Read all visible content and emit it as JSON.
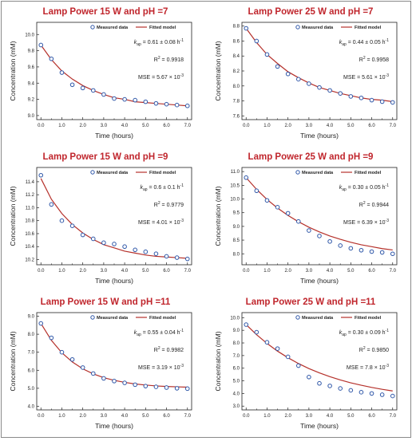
{
  "chart_data": [
    {
      "type": "scatter",
      "title": "Lamp Power 15 W and pH =7",
      "xlabel": "Time (hours)",
      "ylabel": "Concentration (mM)",
      "xlim": [
        -0.2,
        7.2
      ],
      "ylim": [
        8.95,
        10.15
      ],
      "xticks": [
        "0.0",
        "1.0",
        "2.0",
        "3.0",
        "4.0",
        "5.0",
        "6.0",
        "7.0"
      ],
      "yticks": [
        "9.0",
        "9.2",
        "9.4",
        "9.6",
        "9.8",
        "10.0"
      ],
      "ytick_values": [
        9.0,
        9.2,
        9.4,
        9.6,
        9.8,
        10.0
      ],
      "legend": [
        "Measured data",
        "Fitted model"
      ],
      "legend_position": "top-right",
      "annotations": [
        "k",
        "ap",
        " = 0.61 ± 0.08 h",
        "-1",
        "R",
        "2",
        " = 0.9918",
        "MSE = 5.67 × 10",
        "-3"
      ],
      "x": [
        0,
        0.5,
        1.0,
        1.5,
        2.0,
        2.5,
        3.0,
        3.5,
        4.0,
        4.5,
        5.0,
        5.5,
        6.0,
        6.5,
        7.0
      ],
      "series": [
        {
          "name": "Measured data",
          "values": [
            9.87,
            9.7,
            9.53,
            9.38,
            9.34,
            9.31,
            9.26,
            9.21,
            9.2,
            9.19,
            9.17,
            9.15,
            9.14,
            9.13,
            9.12
          ]
        },
        {
          "name": "Fitted model",
          "values": [
            9.87,
            9.69,
            9.55,
            9.45,
            9.37,
            9.31,
            9.26,
            9.22,
            9.2,
            9.17,
            9.16,
            9.15,
            9.14,
            9.13,
            9.12
          ]
        }
      ]
    },
    {
      "type": "scatter",
      "title": "Lamp Power 25 W and pH =7",
      "xlabel": "Time (hours)",
      "ylabel": "Concentration (mM)",
      "xlim": [
        -0.2,
        7.2
      ],
      "ylim": [
        7.55,
        8.85
      ],
      "xticks": [
        "0.0",
        "1.0",
        "2.0",
        "3.0",
        "4.0",
        "5.0",
        "6.0",
        "7.0"
      ],
      "yticks": [
        "7.6",
        "7.8",
        "8.0",
        "8.2",
        "8.4",
        "8.6",
        "8.8"
      ],
      "ytick_values": [
        7.6,
        7.8,
        8.0,
        8.2,
        8.4,
        8.6,
        8.8
      ],
      "legend": [
        "Measured data",
        "Fitted model"
      ],
      "legend_position": "top-right",
      "annotations": [
        "k",
        "ap",
        " = 0.44 ± 0.05 h",
        "-1",
        "R",
        "2",
        " = 0.9958",
        "MSE = 5.61 × 10",
        "-3"
      ],
      "x": [
        0,
        0.5,
        1.0,
        1.5,
        2.0,
        2.5,
        3.0,
        3.5,
        4.0,
        4.5,
        5.0,
        5.5,
        6.0,
        6.5,
        7.0
      ],
      "series": [
        {
          "name": "Measured data",
          "values": [
            8.77,
            8.6,
            8.42,
            8.26,
            8.16,
            8.09,
            8.03,
            7.98,
            7.94,
            7.9,
            7.86,
            7.84,
            7.81,
            7.79,
            7.78
          ]
        },
        {
          "name": "Fitted model",
          "values": [
            8.77,
            8.58,
            8.42,
            8.3,
            8.19,
            8.11,
            8.04,
            7.98,
            7.94,
            7.9,
            7.87,
            7.84,
            7.82,
            7.81,
            7.79
          ]
        }
      ]
    },
    {
      "type": "scatter",
      "title": "Lamp Power 15 W and pH =9",
      "xlabel": "Time (hours)",
      "ylabel": "Concentration (mM)",
      "xlim": [
        -0.2,
        7.2
      ],
      "ylim": [
        10.12,
        11.62
      ],
      "xticks": [
        "0.0",
        "1.0",
        "2.0",
        "3.0",
        "4.0",
        "5.0",
        "6.0",
        "7.0"
      ],
      "yticks": [
        "10.2",
        "10.4",
        "10.6",
        "10.8",
        "11.0",
        "11.2",
        "11.4"
      ],
      "ytick_values": [
        10.2,
        10.4,
        10.6,
        10.8,
        11.0,
        11.2,
        11.4
      ],
      "legend": [
        "Measured data",
        "Fitted model"
      ],
      "legend_position": "top-right",
      "annotations": [
        "k",
        "ap",
        " = 0.6 ± 0.1 h",
        "-1",
        "R",
        "2",
        " = 0.9779",
        "MSE = 4.01 × 10",
        "-3"
      ],
      "x": [
        0,
        0.5,
        1.0,
        1.5,
        2.0,
        2.5,
        3.0,
        3.5,
        4.0,
        4.5,
        5.0,
        5.5,
        6.0,
        6.5,
        7.0
      ],
      "series": [
        {
          "name": "Measured data",
          "values": [
            11.5,
            11.05,
            10.8,
            10.72,
            10.58,
            10.52,
            10.46,
            10.44,
            10.4,
            10.35,
            10.32,
            10.29,
            10.25,
            10.23,
            10.21
          ]
        },
        {
          "name": "Fitted model",
          "values": [
            11.45,
            11.13,
            10.91,
            10.74,
            10.61,
            10.51,
            10.43,
            10.38,
            10.33,
            10.3,
            10.27,
            10.25,
            10.24,
            10.23,
            10.22
          ]
        }
      ]
    },
    {
      "type": "scatter",
      "title": "Lamp Power 25 W and pH =9",
      "xlabel": "Time (hours)",
      "ylabel": "Concentration (mM)",
      "xlim": [
        -0.2,
        7.2
      ],
      "ylim": [
        7.6,
        11.15
      ],
      "xticks": [
        "0.0",
        "1.0",
        "2.0",
        "3.0",
        "4.0",
        "5.0",
        "6.0",
        "7.0"
      ],
      "yticks": [
        "8.0",
        "8.5",
        "9.0",
        "9.5",
        "10.0",
        "10.5",
        "11.0"
      ],
      "ytick_values": [
        8.0,
        8.5,
        9.0,
        9.5,
        10.0,
        10.5,
        11.0
      ],
      "legend": [
        "Measured data",
        "Fitted model"
      ],
      "legend_position": "top-right",
      "annotations": [
        "k",
        "ap",
        " = 0.30 ± 0.05 h",
        "-1",
        "R",
        "2",
        " = 0.9944",
        "MSE = 6.39 × 10",
        "-3"
      ],
      "x": [
        0,
        0.5,
        1.0,
        1.5,
        2.0,
        2.5,
        3.0,
        3.5,
        4.0,
        4.5,
        5.0,
        5.5,
        6.0,
        6.5,
        7.0
      ],
      "series": [
        {
          "name": "Measured data",
          "values": [
            10.78,
            10.3,
            9.95,
            9.7,
            9.48,
            9.18,
            8.85,
            8.65,
            8.45,
            8.3,
            8.2,
            8.13,
            8.08,
            8.05,
            8.0
          ]
        },
        {
          "name": "Fitted model",
          "values": [
            10.78,
            10.35,
            9.98,
            9.67,
            9.4,
            9.17,
            8.97,
            8.8,
            8.65,
            8.53,
            8.42,
            8.33,
            8.26,
            8.19,
            8.14
          ]
        }
      ]
    },
    {
      "type": "scatter",
      "title": "Lamp Power 15 W and pH =11",
      "xlabel": "Time (hours)",
      "ylabel": "Concentration (mM)",
      "xlim": [
        -0.2,
        7.2
      ],
      "ylim": [
        3.8,
        9.2
      ],
      "xticks": [
        "0.0",
        "1.0",
        "2.0",
        "3.0",
        "4.0",
        "5.0",
        "6.0",
        "7.0"
      ],
      "yticks": [
        "4.0",
        "5.0",
        "6.0",
        "7.0",
        "8.0",
        "9.0"
      ],
      "ytick_values": [
        4.0,
        5.0,
        6.0,
        7.0,
        8.0,
        9.0
      ],
      "legend": [
        "Measured data",
        "Fitted model"
      ],
      "legend_position": "top-right",
      "annotations": [
        "k",
        "ap",
        " = 0.55 ± 0.04 h",
        "-1",
        "R",
        "2",
        " = 0.9982",
        "MSE = 3.19 × 10",
        "-3"
      ],
      "x": [
        0,
        0.5,
        1.0,
        1.5,
        2.0,
        2.5,
        3.0,
        3.5,
        4.0,
        4.5,
        5.0,
        5.5,
        6.0,
        6.5,
        7.0
      ],
      "series": [
        {
          "name": "Measured data",
          "values": [
            8.6,
            7.8,
            7.0,
            6.6,
            6.15,
            5.82,
            5.55,
            5.4,
            5.3,
            5.2,
            5.12,
            5.08,
            5.04,
            5.0,
            4.98
          ]
        },
        {
          "name": "Fitted model",
          "values": [
            8.6,
            7.66,
            6.97,
            6.46,
            6.08,
            5.8,
            5.59,
            5.44,
            5.33,
            5.24,
            5.18,
            5.13,
            5.1,
            5.08,
            5.06
          ]
        }
      ]
    },
    {
      "type": "scatter",
      "title": "Lamp Power 25 W and pH =11",
      "xlabel": "Time (hours)",
      "ylabel": "Concentration (mM)",
      "xlim": [
        -0.2,
        7.2
      ],
      "ylim": [
        2.7,
        10.4
      ],
      "xticks": [
        "0.0",
        "1.0",
        "2.0",
        "3.0",
        "4.0",
        "5.0",
        "6.0",
        "7.0"
      ],
      "yticks": [
        "3.0",
        "4.0",
        "5.0",
        "6.0",
        "7.0",
        "8.0",
        "9.0",
        "10.0"
      ],
      "ytick_values": [
        3.0,
        4.0,
        5.0,
        6.0,
        7.0,
        8.0,
        9.0,
        10.0
      ],
      "legend": [
        "Measured data",
        "Fitted model"
      ],
      "legend_position": "top-right",
      "annotations": [
        "k",
        "ap",
        " = 0.30 ± 0.09 h",
        "-1",
        "R",
        "2",
        " = 0.9850",
        "MSE = 7.8 × 10",
        "-3"
      ],
      "x": [
        0,
        0.5,
        1.0,
        1.5,
        2.0,
        2.5,
        3.0,
        3.5,
        4.0,
        4.5,
        5.0,
        5.5,
        6.0,
        6.5,
        7.0
      ],
      "series": [
        {
          "name": "Measured data",
          "values": [
            9.45,
            8.85,
            8.05,
            7.55,
            6.9,
            6.2,
            5.3,
            4.8,
            4.6,
            4.4,
            4.25,
            4.1,
            4.0,
            3.9,
            3.8
          ]
        },
        {
          "name": "Fitted model",
          "values": [
            9.45,
            8.65,
            7.96,
            7.35,
            6.83,
            6.37,
            5.97,
            5.63,
            5.33,
            5.07,
            4.84,
            4.65,
            4.48,
            4.33,
            4.2
          ]
        }
      ]
    }
  ],
  "colors": {
    "title": "#c0262d",
    "fit_line": "#b5302a",
    "marker_edge": "#2f57a8",
    "axis": "#222222"
  }
}
